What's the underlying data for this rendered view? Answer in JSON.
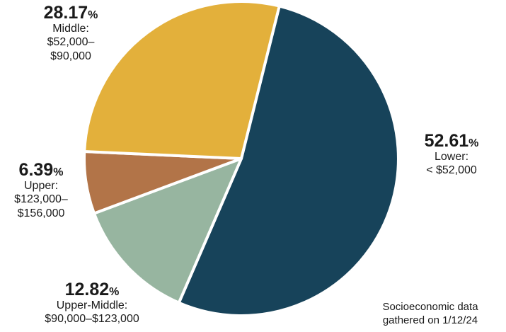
{
  "chart_data": {
    "type": "pie",
    "start_angle_deg": 14,
    "direction": "clockwise",
    "slices": [
      {
        "label": "Lower:\n< $52,000",
        "value": 52.61,
        "color": "#17435a"
      },
      {
        "label": "Upper-Middle:\n$90,000–$123,000",
        "value": 12.82,
        "color": "#97b5a0"
      },
      {
        "label": "Upper:\n$123,000–\n$156,000",
        "value": 6.39,
        "color": "#b27448"
      },
      {
        "label": "Middle:\n$52,000–\n$90,000",
        "value": 28.17,
        "color": "#e3b03b"
      }
    ],
    "value_suffix": "%",
    "note": "Socioeconomic data\ngathered on 1/12/24"
  }
}
